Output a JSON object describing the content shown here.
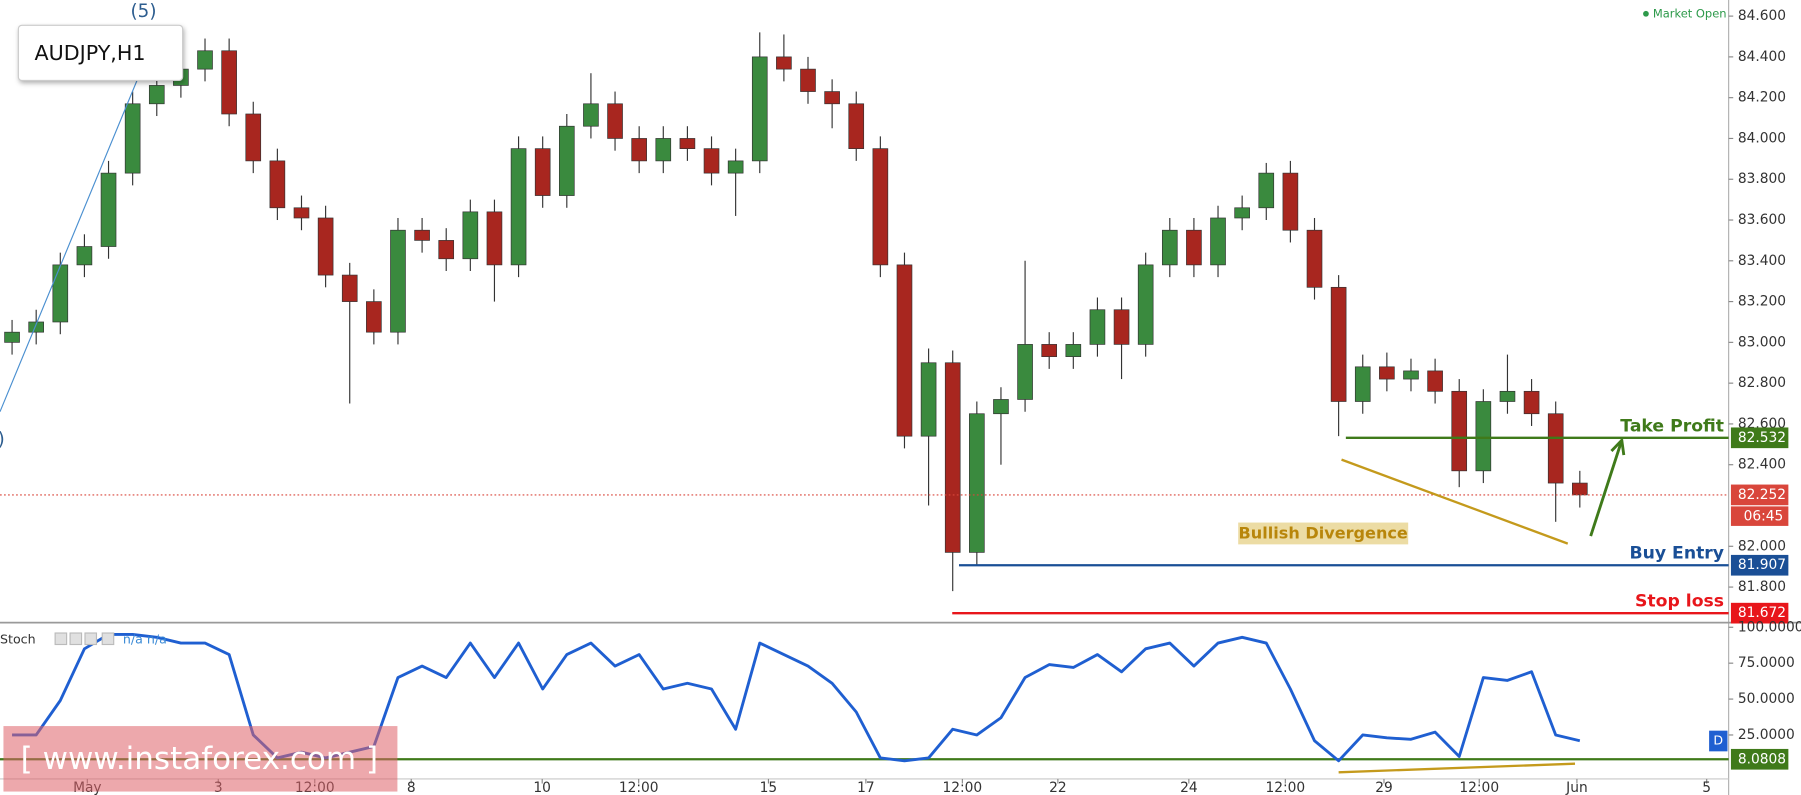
{
  "header": {
    "symbol": "AUDJPY,H1",
    "status": "Market Open",
    "watermark": "[ www.instaforex.com ]",
    "panel_badge": "D"
  },
  "chart_data": [
    {
      "type": "candlestick",
      "open": [
        83.0,
        83.05,
        83.1,
        83.38,
        83.47,
        83.83,
        84.17,
        84.26,
        84.34,
        84.43,
        84.12,
        83.89,
        83.66,
        83.61,
        83.33,
        83.2,
        83.05,
        83.55,
        83.5,
        83.41,
        83.64,
        83.38,
        83.95,
        83.72,
        84.06,
        84.17,
        84.0,
        83.89,
        84.0,
        83.95,
        83.83,
        83.89,
        84.4,
        84.34,
        84.23,
        84.17,
        83.95,
        83.38,
        82.54,
        82.9,
        81.97,
        82.65,
        82.72,
        82.99,
        82.93,
        82.99,
        83.16,
        82.99,
        83.38,
        83.55,
        83.38,
        83.61,
        83.66,
        83.83,
        83.55,
        83.27,
        82.71,
        82.88,
        82.82,
        82.86,
        82.76,
        82.37,
        82.71,
        82.76,
        82.65,
        82.31
      ],
      "high": [
        83.11,
        83.16,
        83.44,
        83.53,
        83.89,
        84.23,
        84.32,
        84.4,
        84.49,
        84.49,
        84.18,
        83.95,
        83.72,
        83.67,
        83.39,
        83.26,
        83.61,
        83.61,
        83.56,
        83.7,
        83.7,
        84.01,
        84.01,
        84.12,
        84.32,
        84.23,
        84.06,
        84.06,
        84.06,
        84.01,
        83.95,
        84.52,
        84.51,
        84.4,
        84.29,
        84.23,
        84.01,
        83.44,
        82.97,
        82.96,
        82.71,
        82.78,
        83.4,
        83.05,
        83.05,
        83.22,
        83.22,
        83.44,
        83.61,
        83.61,
        83.67,
        83.72,
        83.88,
        83.89,
        83.61,
        83.33,
        82.94,
        82.95,
        82.92,
        82.92,
        82.82,
        82.77,
        82.94,
        82.82,
        82.71,
        82.37
      ],
      "low": [
        82.94,
        82.99,
        83.04,
        83.32,
        83.41,
        83.77,
        84.11,
        84.2,
        84.28,
        84.06,
        83.83,
        83.6,
        83.55,
        83.27,
        82.7,
        82.99,
        82.99,
        83.44,
        83.35,
        83.35,
        83.2,
        83.32,
        83.66,
        83.66,
        84.0,
        83.94,
        83.83,
        83.83,
        83.89,
        83.77,
        83.62,
        83.83,
        84.28,
        84.17,
        84.05,
        83.89,
        83.32,
        82.48,
        82.2,
        81.78,
        81.91,
        82.4,
        82.66,
        82.87,
        82.87,
        82.93,
        82.82,
        82.93,
        83.32,
        83.32,
        83.32,
        83.55,
        83.6,
        83.49,
        83.21,
        82.54,
        82.65,
        82.76,
        82.76,
        82.7,
        82.29,
        82.31,
        82.65,
        82.59,
        82.12,
        82.19
      ],
      "close": [
        83.05,
        83.1,
        83.38,
        83.47,
        83.83,
        84.17,
        84.26,
        84.34,
        84.43,
        84.12,
        83.89,
        83.66,
        83.61,
        83.33,
        83.2,
        83.05,
        83.55,
        83.5,
        83.41,
        83.64,
        83.38,
        83.95,
        83.72,
        84.06,
        84.17,
        84.0,
        83.89,
        84.0,
        83.95,
        83.83,
        83.89,
        84.4,
        84.34,
        84.23,
        84.17,
        83.95,
        83.38,
        82.54,
        82.9,
        81.97,
        82.65,
        82.72,
        82.99,
        82.93,
        82.99,
        83.16,
        82.99,
        83.38,
        83.55,
        83.38,
        83.61,
        83.66,
        83.83,
        83.55,
        83.27,
        82.71,
        82.88,
        82.82,
        82.86,
        82.76,
        82.37,
        82.71,
        82.76,
        82.65,
        82.31,
        82.252
      ],
      "up_color": "#3a8a3e",
      "down_color": "#a8261f",
      "wick_color": "#333333",
      "xlim": [
        -0.5,
        71.17
      ],
      "ylim": [
        81.631,
        84.679
      ],
      "yticks": [
        {
          "value": 81.8,
          "label": "81.800"
        },
        {
          "value": 82.0,
          "label": "82.000"
        },
        {
          "value": 82.4,
          "label": "82.400"
        },
        {
          "value": 82.6,
          "label": "82.600"
        },
        {
          "value": 82.8,
          "label": "82.800"
        },
        {
          "value": 83.0,
          "label": "83.000"
        },
        {
          "value": 83.2,
          "label": "83.200"
        },
        {
          "value": 83.4,
          "label": "83.400"
        },
        {
          "value": 83.6,
          "label": "83.600"
        },
        {
          "value": 83.8,
          "label": "83.800"
        },
        {
          "value": 84.0,
          "label": "84.000"
        },
        {
          "value": 84.2,
          "label": "84.200"
        },
        {
          "value": 84.4,
          "label": "84.400"
        },
        {
          "value": 84.6,
          "label": "84.600"
        }
      ],
      "current_price": 82.252,
      "current_color": "#d9463b",
      "countdown": "06:45",
      "levels": [
        {
          "label": "Take Profit",
          "value": 82.532,
          "x_start": 55.3,
          "color": "#3f7a1a"
        },
        {
          "label": "Buy Entry",
          "value": 81.907,
          "x_start": 39.26,
          "color": "#1a4f96"
        },
        {
          "label": "Stop loss",
          "value": 81.672,
          "x_start": 38.98,
          "color": "#e8161b"
        }
      ],
      "lines": [
        {
          "x": [
            -0.5,
            5.69
          ],
          "y": [
            82.66,
            84.43
          ],
          "color": "#4a8fd0"
        },
        {
          "x": [
            55.12,
            64.5
          ],
          "y": [
            82.425,
            82.013
          ],
          "color": "#c49a1c"
        },
        {
          "x": [
            65.45,
            66.74
          ],
          "y": [
            82.05,
            82.52
          ],
          "color": "#3f7a1a",
          "arrow": true
        }
      ],
      "annotations": [
        {
          "text": "Bullish Divergence",
          "x": 54.36,
          "y": 82.06,
          "color": "#b8860b",
          "background": "#ecdca4"
        }
      ],
      "wave_labels": [
        {
          "text": "(5)",
          "x": 5.45,
          "y": 84.62,
          "color": "#2d5d8f"
        },
        {
          "text": ")",
          "x": -0.45,
          "y": 82.52,
          "color": "#2d5d8f"
        }
      ]
    },
    {
      "type": "line",
      "name": "Stoch",
      "legend_values": "n/a n/a",
      "series": [
        {
          "name": "Stoch",
          "color": "#1f5fd1",
          "values": [
            25,
            25,
            49,
            85,
            95,
            95,
            93,
            89,
            89,
            81,
            25,
            9,
            13,
            9,
            13,
            17,
            65,
            73,
            65,
            89,
            65,
            89,
            57,
            81,
            89,
            73,
            81,
            57,
            61,
            57,
            29,
            89,
            81,
            73,
            61,
            41,
            9,
            7,
            9,
            29,
            25,
            37,
            65,
            74,
            72,
            81,
            69,
            85,
            89,
            73,
            89,
            93,
            89,
            57,
            21,
            7,
            25,
            23,
            22,
            27,
            10,
            65,
            63,
            69,
            25,
            21
          ]
        }
      ],
      "xlim": [
        -0.5,
        71.17
      ],
      "ylim": [
        -5.6,
        102.4
      ],
      "yticks": [
        {
          "value": 100,
          "label": "100.0000"
        },
        {
          "value": 75,
          "label": "75.0000"
        },
        {
          "value": 50,
          "label": "50.0000"
        },
        {
          "value": 25,
          "label": "25.0000"
        }
      ],
      "xticks": [
        {
          "value": 3.12,
          "label": "May"
        },
        {
          "value": 8.55,
          "label": "3"
        },
        {
          "value": 12.55,
          "label": "12:00"
        },
        {
          "value": 16.55,
          "label": "8"
        },
        {
          "value": 21.98,
          "label": "10"
        },
        {
          "value": 25.98,
          "label": "12:00"
        },
        {
          "value": 31.36,
          "label": "15"
        },
        {
          "value": 35.4,
          "label": "17"
        },
        {
          "value": 39.4,
          "label": "12:00"
        },
        {
          "value": 43.36,
          "label": "22"
        },
        {
          "value": 48.79,
          "label": "24"
        },
        {
          "value": 52.79,
          "label": "12:00"
        },
        {
          "value": 56.88,
          "label": "29"
        },
        {
          "value": 60.83,
          "label": "12:00"
        },
        {
          "value": 64.88,
          "label": "Jun"
        },
        {
          "value": 70.26,
          "label": "5"
        }
      ],
      "level": {
        "value": 8.0808,
        "color": "#3f7a1a"
      },
      "lines": [
        {
          "x": [
            55.0,
            64.8
          ],
          "y": [
            -1,
            5
          ],
          "color": "#c49a1c"
        }
      ]
    }
  ]
}
